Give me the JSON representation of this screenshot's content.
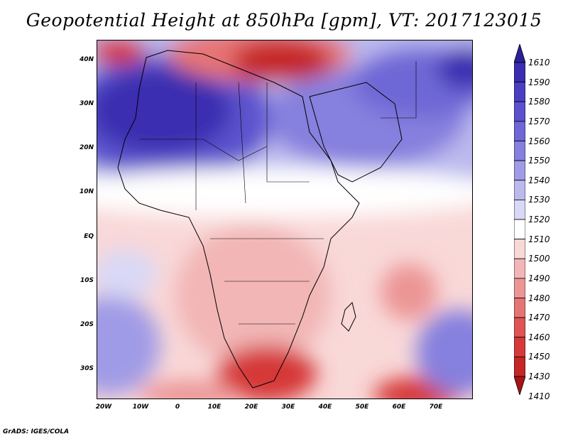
{
  "title": "Geopotential Height at 850hPa [gpm], VT: 2017123015",
  "credit": "GrADS: IGES/COLA",
  "map": {
    "lat_labels": [
      "40N",
      "30N",
      "20N",
      "10N",
      "EQ",
      "10S",
      "20S",
      "30S"
    ],
    "lon_labels": [
      "20W",
      "10W",
      "0",
      "10E",
      "20E",
      "30E",
      "40E",
      "50E",
      "60E",
      "70E"
    ]
  },
  "colorbar": {
    "levels": [
      "1610",
      "1590",
      "1580",
      "1570",
      "1560",
      "1550",
      "1540",
      "1530",
      "1520",
      "1510",
      "1500",
      "1490",
      "1480",
      "1470",
      "1460",
      "1450",
      "1430",
      "1410"
    ],
    "colors": [
      "#2c1f9b",
      "#3a2db0",
      "#4a3fc2",
      "#5b52cd",
      "#6e67d6",
      "#8680de",
      "#a09be6",
      "#bcb9ee",
      "#d9d8f6",
      "#ffffff",
      "#f9d8d8",
      "#f2b6b6",
      "#ec9595",
      "#e67474",
      "#e05454",
      "#d63939",
      "#c52626",
      "#a81414"
    ]
  },
  "regions": {
    "high_north_africa": "1580",
    "high_arabia": "1540",
    "low_mediterranean": "1450",
    "low_southern_africa": "1450"
  }
}
